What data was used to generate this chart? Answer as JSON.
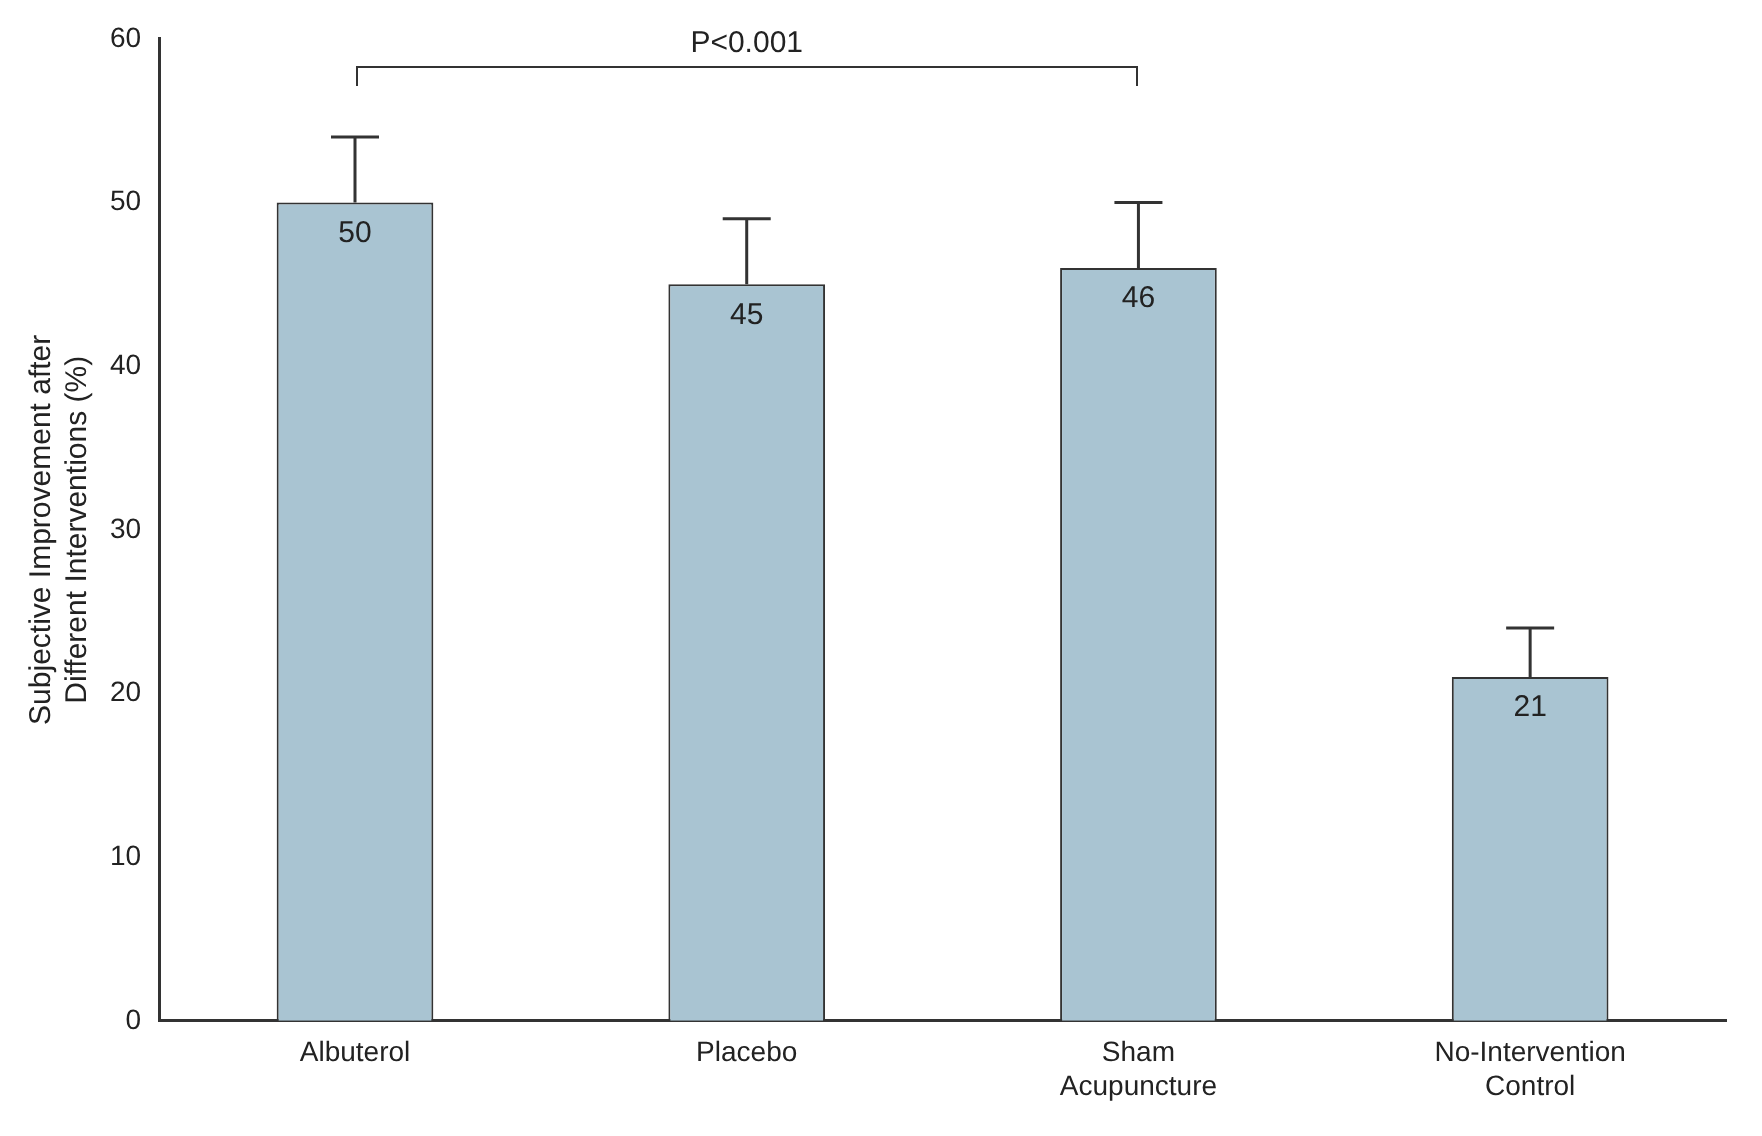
{
  "chart_data": {
    "type": "bar",
    "ylabel": "Subjective Improvement after\nDifferent Interventions (%)",
    "categories": [
      "Albuterol",
      "Placebo",
      "Sham\nAcupuncture",
      "No-Intervention\nControl"
    ],
    "values": [
      50,
      45,
      46,
      21
    ],
    "errors": [
      [
        50,
        54
      ],
      [
        45,
        49
      ],
      [
        46,
        50
      ],
      [
        21,
        24
      ]
    ],
    "color": "#a9c4d2",
    "ylim": [
      0,
      60
    ],
    "yticks": [
      0,
      10,
      20,
      30,
      40,
      50,
      60
    ],
    "grid": false,
    "legend": false,
    "data_labels": true,
    "annotations": [
      "P<0.001"
    ]
  }
}
